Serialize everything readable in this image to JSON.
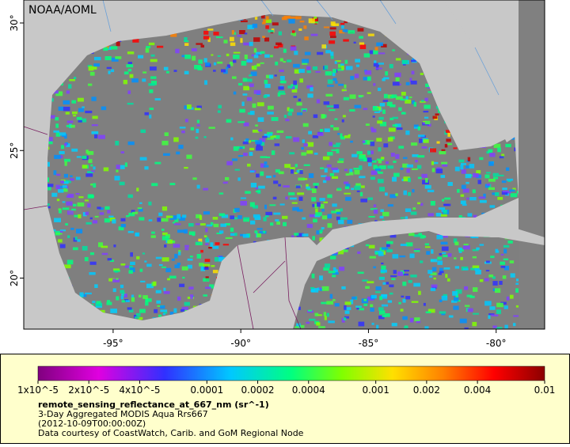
{
  "map": {
    "credit": "NOAA/AOML",
    "lon_range": [
      -98.5,
      -78.1
    ],
    "lat_range": [
      18,
      30.9
    ],
    "lon_ticks": [
      {
        "value": -95,
        "label": "-95°"
      },
      {
        "value": -90,
        "label": "-90°"
      },
      {
        "value": -85,
        "label": "-85°"
      },
      {
        "value": -80,
        "label": "-80°"
      }
    ],
    "lat_ticks": [
      {
        "value": 20,
        "label": "20°"
      },
      {
        "value": 25,
        "label": "25°"
      },
      {
        "value": 30,
        "label": "30°"
      }
    ]
  },
  "colorbar": {
    "scale": "log",
    "range": [
      1e-05,
      0.01
    ],
    "ticks": [
      {
        "value": 1e-05,
        "label": "1x10^-5"
      },
      {
        "value": 2e-05,
        "label": "2x10^-5"
      },
      {
        "value": 4e-05,
        "label": "4x10^-5"
      },
      0.0001,
      0.0002,
      0.0004,
      0.001,
      0.002,
      0.004,
      0.01
    ]
  },
  "legend": {
    "variable": "remote_sensing_reflectance_at_667_nm (sr^-1)",
    "description": "3-Day Aggregated MODIS Aqua Rrs667",
    "date": "(2012-10-09T00:00:00Z)",
    "source": "Data courtesy of CoastWatch, Carib. and GoM Regional Node"
  }
}
